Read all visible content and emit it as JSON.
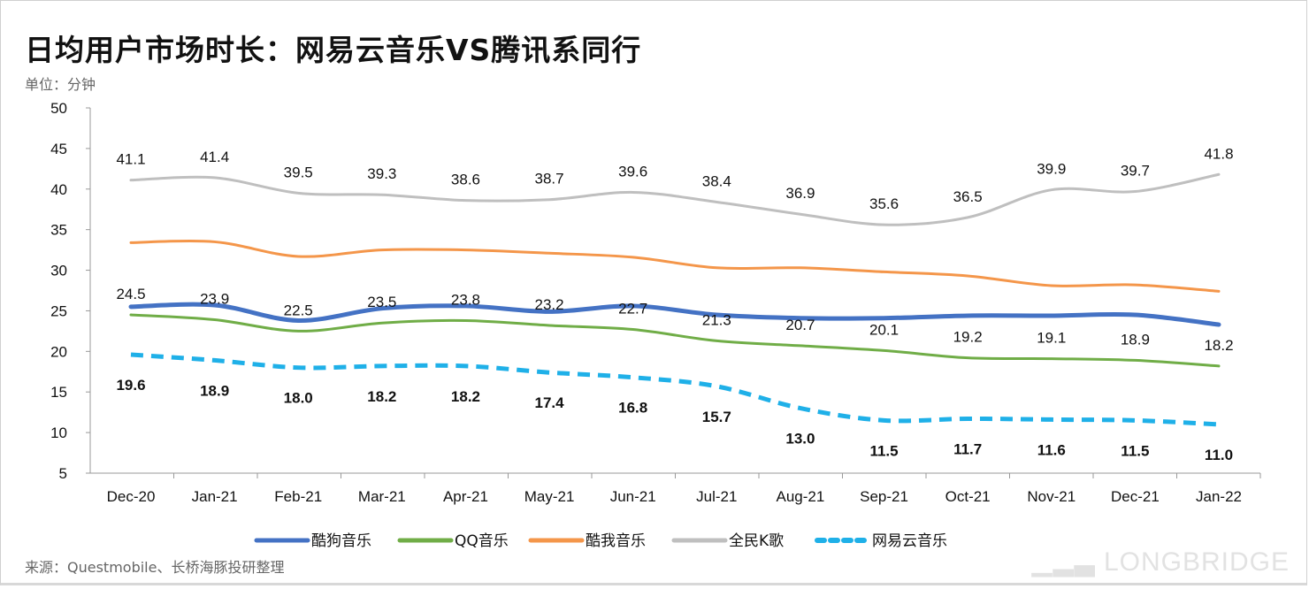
{
  "title": "日均用户市场时长：网易云音乐VS腾讯系同行",
  "unit": "单位：分钟",
  "source": "来源：Questmobile、长桥海豚投研整理",
  "watermark": "LONGBRIDGE",
  "chart_data": {
    "type": "line",
    "title": "日均用户市场时长：网易云音乐VS腾讯系同行",
    "ylabel": "单位：分钟",
    "xlabel": "",
    "ylim": [
      5,
      50
    ],
    "yticks": [
      5,
      10,
      15,
      20,
      25,
      30,
      35,
      40,
      45,
      50
    ],
    "categories": [
      "Dec-20",
      "Jan-21",
      "Feb-21",
      "Mar-21",
      "Apr-21",
      "May-21",
      "Jun-21",
      "Jul-21",
      "Aug-21",
      "Sep-21",
      "Oct-21",
      "Nov-21",
      "Dec-21",
      "Jan-22"
    ],
    "legend_position": "bottom",
    "series": [
      {
        "name": "酷狗音乐",
        "color": "#4472c4",
        "dashed": false,
        "labeled": false,
        "width": 5,
        "values": [
          25.5,
          25.7,
          23.8,
          25.3,
          25.6,
          24.9,
          25.6,
          24.5,
          24.1,
          24.1,
          24.4,
          24.4,
          24.5,
          23.3
        ]
      },
      {
        "name": "QQ音乐",
        "color": "#70ad47",
        "dashed": false,
        "labeled": true,
        "label_pos": "above",
        "width": 3,
        "values": [
          24.5,
          23.9,
          22.5,
          23.5,
          23.8,
          23.2,
          22.7,
          21.3,
          20.7,
          20.1,
          19.2,
          19.1,
          18.9,
          18.2
        ]
      },
      {
        "name": "酷我音乐",
        "color": "#f4964a",
        "dashed": false,
        "labeled": false,
        "width": 3,
        "values": [
          33.4,
          33.5,
          31.7,
          32.5,
          32.5,
          32.1,
          31.6,
          30.3,
          30.3,
          29.8,
          29.3,
          28.1,
          28.2,
          27.4
        ]
      },
      {
        "name": "全民K歌",
        "color": "#bfbfbf",
        "dashed": false,
        "labeled": true,
        "label_pos": "above",
        "width": 3,
        "values": [
          41.1,
          41.4,
          39.5,
          39.3,
          38.6,
          38.7,
          39.6,
          38.4,
          36.9,
          35.6,
          36.5,
          39.9,
          39.7,
          41.8
        ]
      },
      {
        "name": "网易云音乐",
        "color": "#1fb0e8",
        "dashed": true,
        "labeled": true,
        "label_pos": "below",
        "width": 5,
        "values": [
          19.6,
          18.9,
          18.0,
          18.2,
          18.2,
          17.4,
          16.8,
          15.7,
          13.0,
          11.5,
          11.7,
          11.6,
          11.5,
          11.0
        ]
      }
    ]
  }
}
